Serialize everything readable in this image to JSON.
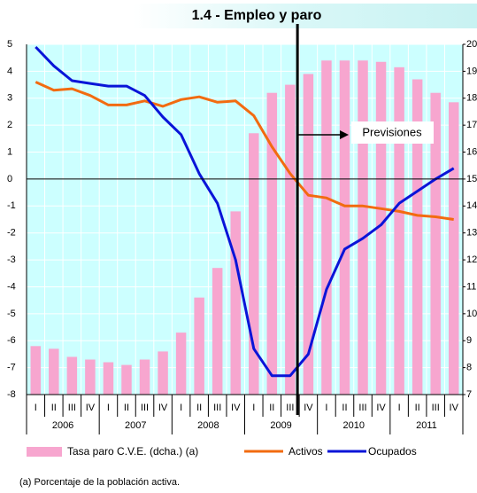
{
  "chart_data": {
    "type": "bar-line",
    "title": "1.4 - Empleo y paro",
    "categories": [
      "I",
      "II",
      "III",
      "IV",
      "I",
      "II",
      "III",
      "IV",
      "I",
      "II",
      "III",
      "IV",
      "I",
      "II",
      "III",
      "IV",
      "I",
      "II",
      "III",
      "IV",
      "I",
      "II",
      "III",
      "IV"
    ],
    "years": [
      "2006",
      "2007",
      "2008",
      "2009",
      "2010",
      "2011"
    ],
    "series": [
      {
        "name": "Tasa paro C.V.E. (dcha.) (a)",
        "kind": "bar",
        "axis": "y2",
        "color": "#f7a6cf",
        "values": [
          8.8,
          8.7,
          8.4,
          8.3,
          8.2,
          8.1,
          8.3,
          8.6,
          9.3,
          10.6,
          11.7,
          13.8,
          16.7,
          18.2,
          18.5,
          18.9,
          19.4,
          19.4,
          19.4,
          19.35,
          19.15,
          18.7,
          18.2,
          17.85
        ]
      },
      {
        "name": "Activos",
        "kind": "line",
        "color": "#f26b10",
        "values": [
          3.6,
          3.3,
          3.35,
          3.1,
          2.75,
          2.75,
          2.9,
          2.7,
          2.95,
          3.05,
          2.85,
          2.9,
          2.35,
          1.2,
          0.2,
          -0.6,
          -0.7,
          -1.0,
          -1.0,
          -1.1,
          -1.2,
          -1.35,
          -1.4,
          -1.5
        ]
      },
      {
        "name": "Ocupados",
        "kind": "line",
        "color": "#0a14d8",
        "values": [
          4.9,
          4.2,
          3.65,
          3.55,
          3.45,
          3.45,
          3.1,
          2.3,
          1.65,
          0.2,
          -0.9,
          -3.0,
          -6.3,
          -7.3,
          -7.3,
          -6.5,
          -4.1,
          -2.6,
          -2.2,
          -1.7,
          -0.9,
          -0.45,
          0.0,
          0.4
        ]
      }
    ],
    "ylim": [
      -8,
      5
    ],
    "yticks": [
      -8,
      -7,
      -6,
      -5,
      -4,
      -3,
      -2,
      -1,
      0,
      1,
      2,
      3,
      4,
      5
    ],
    "y2lim": [
      7,
      20
    ],
    "y2ticks": [
      7,
      8,
      9,
      10,
      11,
      12,
      13,
      14,
      15,
      16,
      17,
      18,
      19,
      20
    ],
    "annotation": "Previsiones",
    "footnote": "(a) Porcentaje de la población activa.",
    "grid": true
  }
}
